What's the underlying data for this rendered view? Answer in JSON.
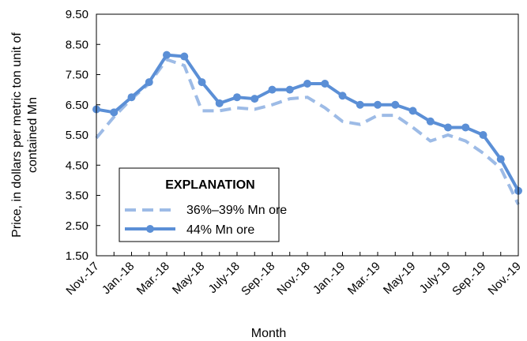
{
  "chart_data": {
    "type": "line",
    "title": "",
    "xlabel": "Month",
    "ylabel_lines": [
      "Price, in dollars per metric ton unit of",
      "contained Mn"
    ],
    "ylim": [
      1.5,
      9.5
    ],
    "yticks": [
      "1.50",
      "2.50",
      "3.50",
      "4.50",
      "5.50",
      "6.50",
      "7.50",
      "8.50",
      "9.50"
    ],
    "ytick_values": [
      1.5,
      2.5,
      3.5,
      4.5,
      5.5,
      6.5,
      7.5,
      8.5,
      9.5
    ],
    "xtick_labels": [
      "Nov.-17",
      "Jan.-18",
      "Mar.-18",
      "May-18",
      "July-18",
      "Sep.-18",
      "Nov.-18",
      "Jan.-19",
      "Mar.-19",
      "May-19",
      "July-19",
      "Sep.-19",
      "Nov.-19"
    ],
    "categories": [
      "Nov.-17",
      "Dec.-17",
      "Jan.-18",
      "Feb.-18",
      "Mar.-18",
      "Apr.-18",
      "May-18",
      "Jun.-18",
      "July-18",
      "Aug.-18",
      "Sep.-18",
      "Oct.-18",
      "Nov.-18",
      "Dec.-18",
      "Jan.-19",
      "Feb.-19",
      "Mar.-19",
      "Apr.-19",
      "May-19",
      "Jun.-19",
      "July-19",
      "Aug.-19",
      "Sep.-19",
      "Oct.-19",
      "Nov.-19"
    ],
    "grid": false,
    "legend_title": "EXPLANATION",
    "legend_position": "lower-left",
    "series": [
      {
        "name": "36%–39% Mn ore",
        "style": "dashed",
        "color": "#9DBBE6",
        "values": [
          5.4,
          6.1,
          6.7,
          7.2,
          8.0,
          7.8,
          6.3,
          6.3,
          6.4,
          6.35,
          6.5,
          6.7,
          6.75,
          6.4,
          5.95,
          5.85,
          6.15,
          6.15,
          5.75,
          5.3,
          5.5,
          5.3,
          4.9,
          4.4,
          3.2
        ]
      },
      {
        "name": "44% Mn ore",
        "style": "solid-markers",
        "color": "#5B8FD6",
        "values": [
          6.35,
          6.25,
          6.75,
          7.25,
          8.15,
          8.1,
          7.25,
          6.55,
          6.75,
          6.7,
          7.0,
          7.0,
          7.2,
          7.2,
          6.8,
          6.5,
          6.5,
          6.5,
          6.3,
          5.95,
          5.75,
          5.75,
          5.5,
          4.7,
          3.65
        ]
      }
    ]
  }
}
